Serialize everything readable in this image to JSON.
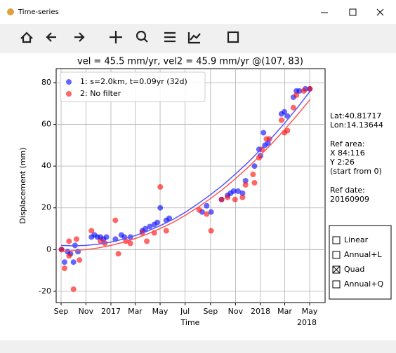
{
  "window": {
    "title": "Time-series"
  },
  "chart_data": {
    "type": "scatter",
    "title": "vel = 45.5 mm/yr, vel2 = 45.9 mm/yr @(107, 83)",
    "xlabel": "Time",
    "ylabel": "Displacement (mm)",
    "x_offset_label": "2018",
    "xlim": [
      2016.634,
      2018.432
    ],
    "ylim": [
      -25.4,
      86.7
    ],
    "xticks": [
      {
        "value": 2016.667,
        "label": "Sep"
      },
      {
        "value": 2016.833,
        "label": "Nov"
      },
      {
        "value": 2017.0,
        "label": "2017"
      },
      {
        "value": 2017.162,
        "label": "Mar"
      },
      {
        "value": 2017.329,
        "label": "May"
      },
      {
        "value": 2017.496,
        "label": "Jul"
      },
      {
        "value": 2017.666,
        "label": "Sep"
      },
      {
        "value": 2017.833,
        "label": "Nov"
      },
      {
        "value": 2018.0,
        "label": "2018"
      },
      {
        "value": 2018.162,
        "label": "Mar"
      },
      {
        "value": 2018.329,
        "label": "May"
      }
    ],
    "yticks": [
      -20,
      0,
      20,
      40,
      60,
      80
    ],
    "grid": true,
    "legend": "upper left",
    "series": [
      {
        "name": "1: s=2.0km, t=0.09yr (32d)",
        "type": "scatter",
        "color": "#0000ff",
        "x": [
          2016.67,
          2016.69,
          2016.71,
          2016.73,
          2016.75,
          2016.76,
          2016.78,
          2016.87,
          2016.89,
          2016.91,
          2016.93,
          2016.95,
          2016.97,
          2017.03,
          2017.07,
          2017.09,
          2017.13,
          2017.21,
          2017.23,
          2017.26,
          2017.29,
          2017.31,
          2017.33,
          2017.37,
          2017.39,
          2017.61,
          2017.64,
          2017.67,
          2017.74,
          2017.78,
          2017.8,
          2017.82,
          2017.85,
          2017.88,
          2017.9,
          2017.96,
          2017.99,
          2018.0,
          2018.02,
          2018.03,
          2018.05,
          2018.14,
          2018.16,
          2018.18,
          2018.22,
          2018.24,
          2018.26,
          2018.3,
          2018.33
        ],
        "values": [
          0,
          -6,
          -1,
          -2,
          -6,
          2,
          -1,
          6,
          7,
          6,
          6,
          5,
          6,
          5,
          7,
          6,
          6,
          9,
          10,
          11,
          12,
          13,
          20,
          14,
          15,
          18,
          21,
          18,
          24,
          26,
          27,
          28,
          28,
          27,
          33,
          40,
          48,
          45,
          56,
          50,
          51,
          65,
          66,
          64,
          73,
          76,
          76,
          77,
          77
        ]
      },
      {
        "name": "2: No filter",
        "type": "scatter",
        "color": "#ff0000",
        "x": [
          2016.67,
          2016.69,
          2016.72,
          2016.72,
          2016.75,
          2016.77,
          2016.79,
          2016.87,
          2016.93,
          2016.96,
          2017.03,
          2017.05,
          2017.1,
          2017.13,
          2017.21,
          2017.24,
          2017.29,
          2017.33,
          2017.37,
          2017.59,
          2017.64,
          2017.67,
          2017.74,
          2017.78,
          2017.83,
          2017.88,
          2017.9,
          2017.95,
          2017.96,
          2017.99,
          2018.01,
          2018.04,
          2018.06,
          2018.14,
          2018.16,
          2018.18,
          2018.22,
          2018.24,
          2018.29,
          2018.33
        ],
        "values": [
          0,
          -9,
          -3,
          4,
          -19,
          5,
          -5,
          9,
          4,
          3,
          14,
          -2,
          4,
          3,
          8,
          4,
          8,
          30,
          9,
          19,
          17,
          9,
          24,
          25,
          24,
          25,
          31,
          36,
          32,
          44,
          48,
          53,
          53,
          62,
          56,
          57,
          68,
          74,
          76,
          77
        ]
      },
      {
        "type": "line",
        "color": "#5555ff",
        "x": [
          2016.667,
          2016.75,
          2016.833,
          2016.917,
          2017.0,
          2017.083,
          2017.167,
          2017.25,
          2017.333,
          2017.417,
          2017.5,
          2017.583,
          2017.667,
          2017.75,
          2017.833,
          2017.917,
          2018.0,
          2018.083,
          2018.167,
          2018.25,
          2018.333
        ],
        "values": [
          2,
          1.8,
          2,
          2.6,
          3.6,
          5,
          6.8,
          9,
          11.6,
          14.5,
          18,
          22,
          26.3,
          31,
          36.2,
          41.8,
          47.8,
          54.2,
          61,
          68.3,
          76
        ]
      },
      {
        "type": "line",
        "color": "#ff5555",
        "x": [
          2016.667,
          2016.75,
          2016.833,
          2016.917,
          2017.0,
          2017.083,
          2017.167,
          2017.25,
          2017.333,
          2017.417,
          2017.5,
          2017.583,
          2017.667,
          2017.75,
          2017.833,
          2017.917,
          2018.0,
          2018.083,
          2018.167,
          2018.25,
          2018.333
        ],
        "values": [
          -1,
          -0.5,
          0,
          0.8,
          2,
          3.5,
          5.4,
          7.6,
          10.2,
          13.1,
          16.5,
          20.3,
          24.5,
          29,
          34,
          39.4,
          45.2,
          51.3,
          57.9,
          64.8,
          72
        ]
      }
    ]
  },
  "side_panel": {
    "location": [
      "Lat:40.81717",
      "Lon:14.13644"
    ],
    "reference": [
      "Ref area:",
      "X 84:116",
      "Y 2:26",
      "(start from 0)"
    ],
    "date": [
      "Ref date:",
      "20160909"
    ]
  },
  "checkboxes": [
    {
      "label": "Linear",
      "checked": false
    },
    {
      "label": "Annual+L",
      "checked": false
    },
    {
      "label": "Quad",
      "checked": true
    },
    {
      "label": "Annual+Q",
      "checked": false
    }
  ]
}
